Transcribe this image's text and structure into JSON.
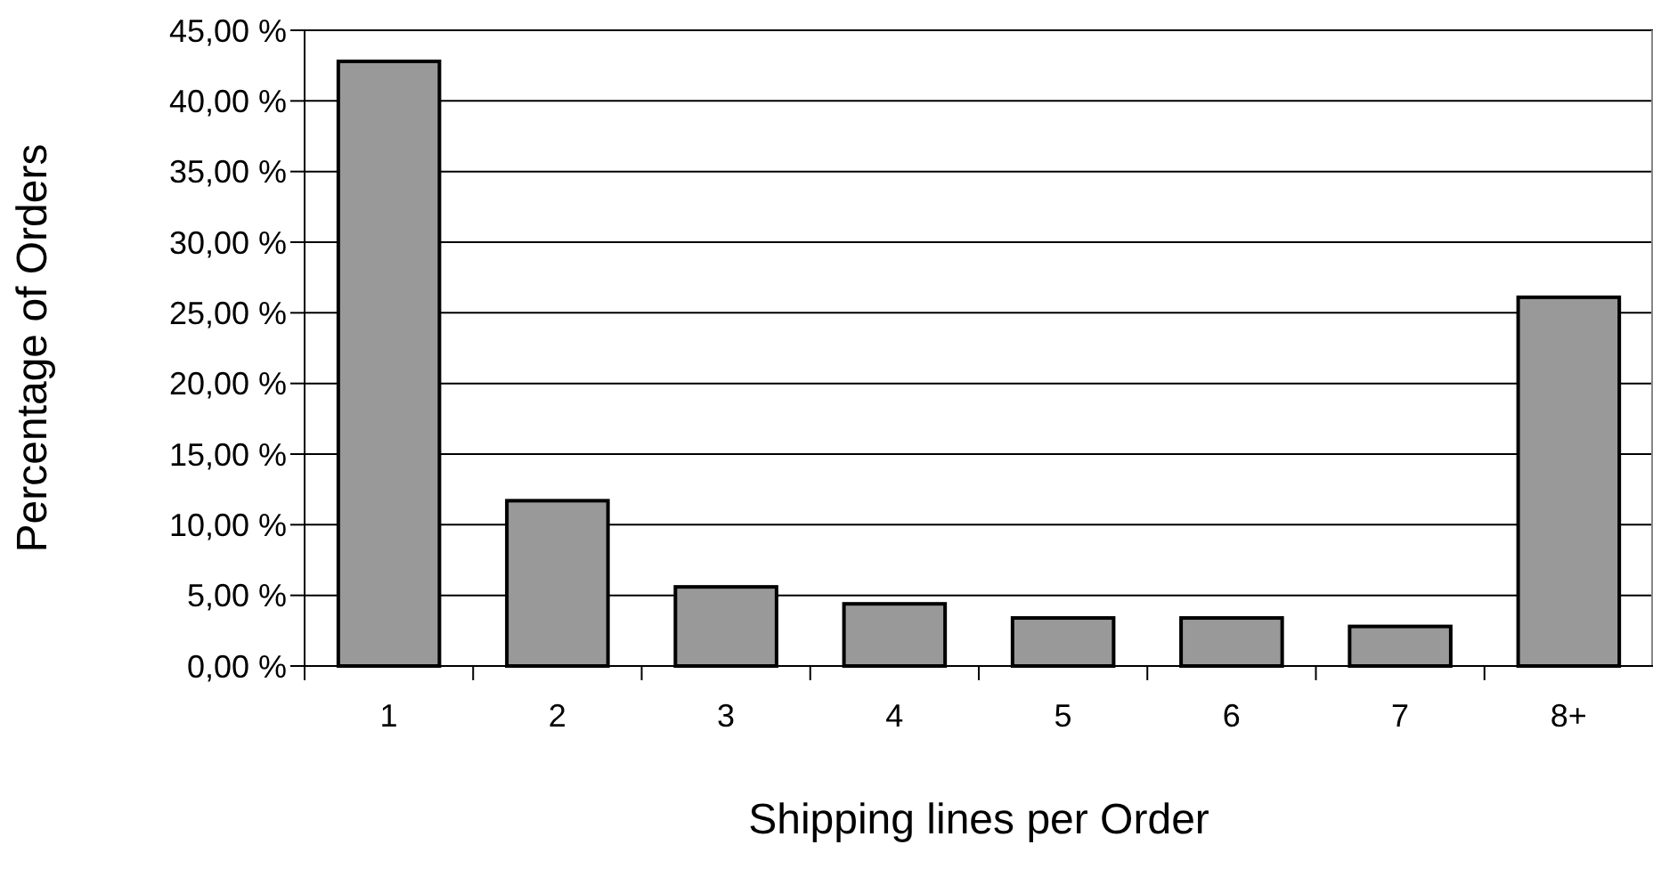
{
  "chart_data": {
    "type": "bar",
    "xlabel": "Shipping lines per Order",
    "ylabel": "Percentage of Orders",
    "categories": [
      "1",
      "2",
      "3",
      "4",
      "5",
      "6",
      "7",
      "8+"
    ],
    "values": [
      42.8,
      11.7,
      5.6,
      4.4,
      3.4,
      3.4,
      2.8,
      26.1
    ],
    "color": "#999999",
    "ylim": [
      0,
      45
    ],
    "yticks": [
      {
        "value": 0,
        "label": "0,00 %"
      },
      {
        "value": 5,
        "label": "5,00 %"
      },
      {
        "value": 10,
        "label": "10,00 %"
      },
      {
        "value": 15,
        "label": "15,00 %"
      },
      {
        "value": 20,
        "label": "20,00 %"
      },
      {
        "value": 25,
        "label": "25,00 %"
      },
      {
        "value": 30,
        "label": "30,00 %"
      },
      {
        "value": 35,
        "label": "35,00 %"
      },
      {
        "value": 40,
        "label": "40,00 %"
      },
      {
        "value": 45,
        "label": "45,00 %"
      }
    ],
    "grid": "y"
  }
}
